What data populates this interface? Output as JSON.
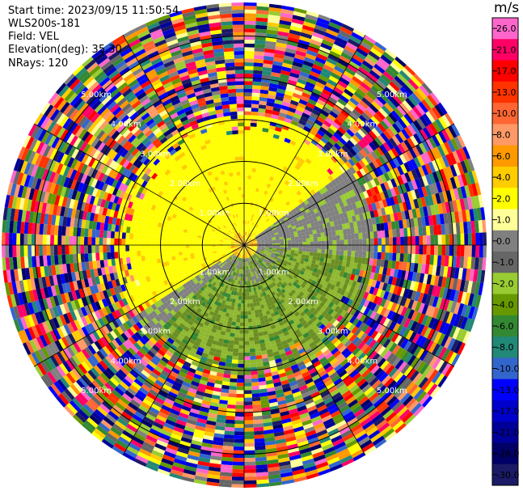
{
  "header": {
    "start_time": "Start time: 2023/09/15 11:50:54",
    "instrument": "WLS200s-181",
    "field": "Field: VEL",
    "elevation": "Elevation(deg): 35.30",
    "nrays": "NRays: 120"
  },
  "chart_data": {
    "type": "heatmap",
    "projection": "polar (PPI)",
    "field": "VEL",
    "units": "m/s",
    "n_rays": 120,
    "range_ring_labels_km": [
      "1.00km",
      "2.00km",
      "3.00km",
      "4.00km",
      "5.00km"
    ],
    "range_rings_km": [
      1,
      2,
      3,
      4,
      5
    ],
    "colorbar": {
      "unit_label": "m/s",
      "tick_labels": [
        "26.0",
        "21.0",
        "17.0",
        "13.0",
        "10.0",
        "8.0",
        "6.0",
        "4.0",
        "2.0",
        "1.0",
        "0.0",
        "-1.0",
        "-2.0",
        "-4.0",
        "-6.0",
        "-8.0",
        "-10.0",
        "-13.0",
        "-17.0",
        "-21.0",
        "-26.0",
        "-30.0"
      ],
      "colors": [
        "#ff66cc",
        "#ff0066",
        "#ff0000",
        "#ff3300",
        "#ff6633",
        "#ff9966",
        "#ff9900",
        "#ffcc00",
        "#ffff00",
        "#ffff99",
        "#808080",
        "#666666",
        "#99cc33",
        "#669900",
        "#338833",
        "#228877",
        "#3366cc",
        "#0000ff",
        "#0000cc",
        "#000099",
        "#000066",
        "#1a1a66"
      ]
    },
    "field_regions": [
      {
        "description": "approaching / small positive velocities (north sector)",
        "value_range": [
          1,
          3
        ],
        "color": "#ffff00"
      },
      {
        "description": "near-zero band",
        "value_range": [
          -1,
          1
        ],
        "color": "#808080"
      },
      {
        "description": "receding (south-east sector)",
        "value_range": [
          -3,
          -1
        ],
        "color": "#8fb830"
      },
      {
        "description": "noise beyond ~3 km",
        "value_range": [
          -30,
          26
        ],
        "color": "mixed"
      }
    ]
  }
}
